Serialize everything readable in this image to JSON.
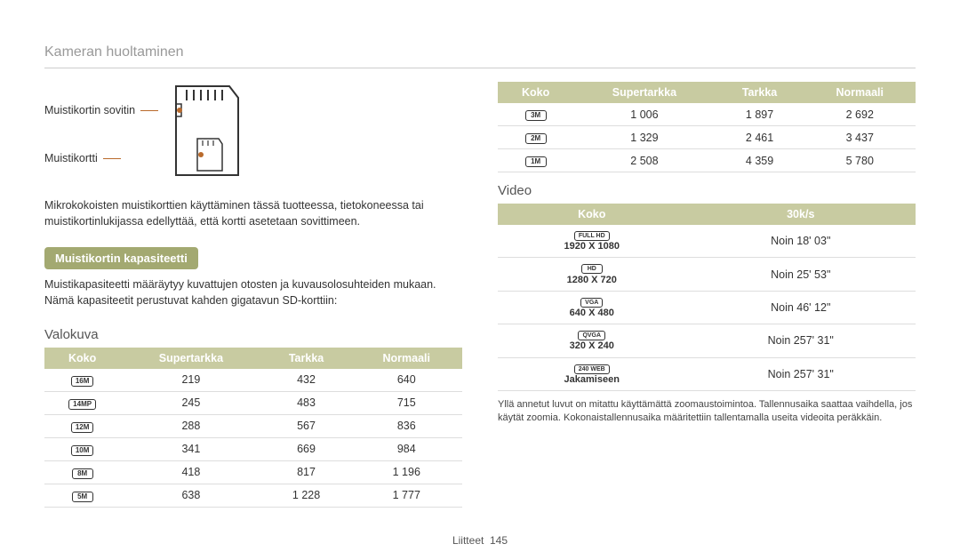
{
  "header": {
    "title": "Kameran huoltaminen"
  },
  "diagram": {
    "label_adapter": "Muistikortin sovitin",
    "label_card": "Muistikortti"
  },
  "intro_text": "Mikrokokoisten muistikorttien käyttäminen tässä tuotteessa, tietokoneessa tai muistikortinlukijassa edellyttää, että kortti asetetaan sovittimeen.",
  "capacity": {
    "heading": "Muistikortin kapasiteetti",
    "body": "Muistikapasiteetti määräytyy kuvattujen otosten ja kuvausolosuhteiden mukaan. Nämä kapasiteetit perustuvat kahden gigatavun SD-korttiin:"
  },
  "photo": {
    "title": "Valokuva",
    "columns": [
      "Koko",
      "Supertarkka",
      "Tarkka",
      "Normaali"
    ],
    "rows": [
      {
        "icon": "16M",
        "cells": [
          "219",
          "432",
          "640"
        ]
      },
      {
        "icon": "14MP",
        "cells": [
          "245",
          "483",
          "715"
        ]
      },
      {
        "icon": "12M",
        "cells": [
          "288",
          "567",
          "836"
        ]
      },
      {
        "icon": "10M",
        "cells": [
          "341",
          "669",
          "984"
        ]
      },
      {
        "icon": "8M",
        "cells": [
          "418",
          "817",
          "1 196"
        ]
      },
      {
        "icon": "5M",
        "cells": [
          "638",
          "1 228",
          "1 777"
        ]
      }
    ]
  },
  "photo2": {
    "columns": [
      "Koko",
      "Supertarkka",
      "Tarkka",
      "Normaali"
    ],
    "rows": [
      {
        "icon": "3M",
        "cells": [
          "1 006",
          "1 897",
          "2 692"
        ]
      },
      {
        "icon": "2M",
        "cells": [
          "1 329",
          "2 461",
          "3 437"
        ]
      },
      {
        "icon": "1M",
        "cells": [
          "2 508",
          "4 359",
          "5 780"
        ]
      }
    ]
  },
  "video": {
    "title": "Video",
    "columns": [
      "Koko",
      "30k/s"
    ],
    "rows": [
      {
        "icon_top": "FULL HD",
        "icon_bottom": "1920 X 1080",
        "value": "Noin 18' 03\""
      },
      {
        "icon_top": "HD",
        "icon_bottom": "1280 X 720",
        "value": "Noin 25' 53\""
      },
      {
        "icon_top": "VGA",
        "icon_bottom": "640 X 480",
        "value": "Noin 46' 12\""
      },
      {
        "icon_top": "QVGA",
        "icon_bottom": "320 X 240",
        "value": "Noin 257' 31\""
      },
      {
        "icon_top": "240 WEB",
        "icon_bottom": "Jakamiseen",
        "value": "Noin 257' 31\""
      }
    ],
    "footnote": "Yllä annetut luvut on mitattu käyttämättä zoomaustoimintoa. Tallennusaika saattaa vaihdella, jos käytät zoomia. Kokonaistallennusaika määritettiin tallentamalla useita videoita peräkkäin."
  },
  "footer": {
    "label": "Liitteet",
    "page": "145"
  },
  "style": {
    "header_bg": "#c8cba1",
    "pill_bg": "#a3a971",
    "connector": "#b96a2c"
  }
}
